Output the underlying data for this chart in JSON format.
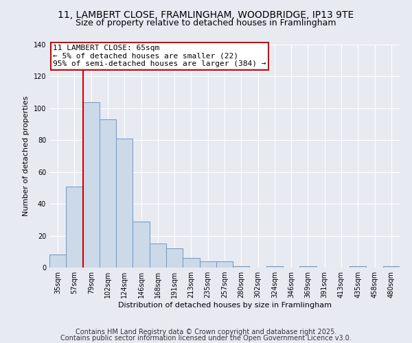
{
  "title_line1": "11, LAMBERT CLOSE, FRAMLINGHAM, WOODBRIDGE, IP13 9TE",
  "title_line2": "Size of property relative to detached houses in Framlingham",
  "xlabel": "Distribution of detached houses by size in Framlingham",
  "ylabel": "Number of detached properties",
  "annotation_line1": "11 LAMBERT CLOSE: 65sqm",
  "annotation_line2": "← 5% of detached houses are smaller (22)",
  "annotation_line3": "95% of semi-detached houses are larger (384) →",
  "categories": [
    "35sqm",
    "57sqm",
    "79sqm",
    "102sqm",
    "124sqm",
    "146sqm",
    "168sqm",
    "191sqm",
    "213sqm",
    "235sqm",
    "257sqm",
    "280sqm",
    "302sqm",
    "324sqm",
    "346sqm",
    "369sqm",
    "391sqm",
    "413sqm",
    "435sqm",
    "458sqm",
    "480sqm"
  ],
  "values": [
    8,
    51,
    104,
    93,
    81,
    29,
    15,
    12,
    6,
    4,
    4,
    1,
    0,
    1,
    0,
    1,
    0,
    0,
    1,
    0,
    1
  ],
  "bar_color": "#ccd9e8",
  "bar_edge_color": "#6699cc",
  "redline_x": 1.5,
  "annotation_box_color": "#ffffff",
  "annotation_box_edge": "#cc0000",
  "redline_color": "#cc0000",
  "background_color": "#e8eaf2",
  "plot_bg_color": "#e8eaf2",
  "footer_line1": "Contains HM Land Registry data © Crown copyright and database right 2025.",
  "footer_line2": "Contains public sector information licensed under the Open Government Licence v3.0.",
  "ylim": [
    0,
    140
  ],
  "yticks": [
    0,
    20,
    40,
    60,
    80,
    100,
    120,
    140
  ],
  "title_fontsize": 10,
  "subtitle_fontsize": 9,
  "footer_fontsize": 7,
  "axis_label_fontsize": 8,
  "tick_fontsize": 7,
  "annot_fontsize": 8
}
